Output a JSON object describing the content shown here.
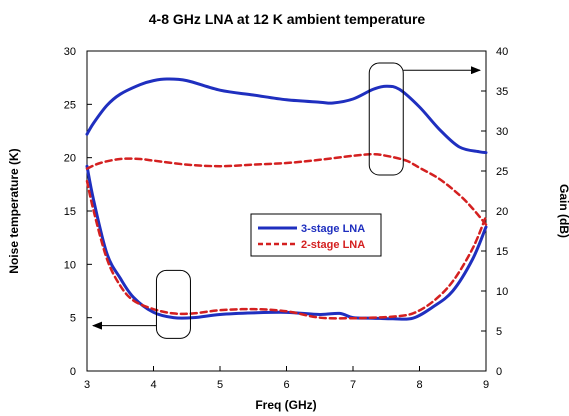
{
  "chart_data": {
    "type": "line",
    "title": "4-8 GHz LNA at 12 K ambient temperature",
    "xlabel": "Freq (GHz)",
    "ylabel_left": "Noise temperature (K)",
    "ylabel_right": "Gain (dB)",
    "xlim": [
      3,
      9
    ],
    "ylim_left": [
      0,
      30
    ],
    "ylim_right": [
      0,
      40
    ],
    "xticks": [
      "3",
      "4",
      "5",
      "6",
      "7",
      "8",
      "9"
    ],
    "yticks_left": [
      "0",
      "5",
      "10",
      "15",
      "20",
      "25",
      "30"
    ],
    "yticks_right": [
      "0",
      "5",
      "10",
      "15",
      "20",
      "25",
      "30",
      "35",
      "40"
    ],
    "grid": false,
    "legend_position": "center-right",
    "colors": {
      "three_stage": "#1f2fbf",
      "two_stage": "#d42020",
      "frame": "#000000"
    },
    "series": [
      {
        "name": "3-stage LNA",
        "axis": "left",
        "quantity": "noise",
        "style": "solid",
        "x": [
          3.0,
          3.1,
          3.3,
          3.5,
          3.7,
          4.0,
          4.3,
          4.6,
          5.0,
          5.5,
          6.0,
          6.5,
          6.8,
          7.0,
          7.3,
          7.6,
          7.9,
          8.2,
          8.5,
          8.8,
          9.0
        ],
        "y": [
          19.2,
          16.0,
          11.0,
          8.7,
          6.9,
          5.5,
          5.0,
          5.0,
          5.3,
          5.45,
          5.5,
          5.3,
          5.4,
          5.0,
          4.95,
          4.9,
          4.95,
          6.0,
          7.5,
          10.5,
          13.5
        ]
      },
      {
        "name": "2-stage LNA",
        "axis": "left",
        "quantity": "noise",
        "style": "dashed",
        "x": [
          3.0,
          3.1,
          3.3,
          3.5,
          3.7,
          4.0,
          4.3,
          4.6,
          5.0,
          5.5,
          6.0,
          6.5,
          7.0,
          7.3,
          7.6,
          7.9,
          8.2,
          8.5,
          8.8,
          9.0
        ],
        "y": [
          17.8,
          15.0,
          10.5,
          8.0,
          6.6,
          5.8,
          5.4,
          5.4,
          5.7,
          5.8,
          5.6,
          5.0,
          4.95,
          5.0,
          5.1,
          5.4,
          6.5,
          8.4,
          11.5,
          14.5
        ]
      },
      {
        "name": "3-stage LNA",
        "axis": "right",
        "quantity": "gain",
        "style": "solid",
        "x": [
          3.0,
          3.1,
          3.3,
          3.5,
          3.8,
          4.0,
          4.2,
          4.5,
          5.0,
          5.5,
          6.0,
          6.5,
          6.7,
          7.0,
          7.3,
          7.5,
          7.7,
          8.0,
          8.3,
          8.6,
          8.9,
          9.0
        ],
        "y": [
          29.6,
          31.0,
          33.2,
          34.6,
          35.8,
          36.3,
          36.5,
          36.3,
          35.1,
          34.5,
          33.9,
          33.6,
          33.5,
          34.0,
          35.2,
          35.6,
          35.2,
          33.0,
          30.2,
          28.0,
          27.4,
          27.3
        ]
      },
      {
        "name": "2-stage LNA",
        "axis": "right",
        "quantity": "gain",
        "style": "dashed",
        "x": [
          3.0,
          3.2,
          3.5,
          3.8,
          4.0,
          4.5,
          5.0,
          5.5,
          6.0,
          6.5,
          7.0,
          7.3,
          7.5,
          7.8,
          8.0,
          8.3,
          8.6,
          8.8,
          9.0
        ],
        "y": [
          25.3,
          26.0,
          26.5,
          26.5,
          26.3,
          25.8,
          25.6,
          25.8,
          26.0,
          26.4,
          26.9,
          27.1,
          26.9,
          26.3,
          25.4,
          24.0,
          22.0,
          20.3,
          18.3
        ]
      }
    ],
    "annotations": [
      {
        "kind": "ellipse",
        "target": "noise curves",
        "x_center": 4.3,
        "y_center_left": 6.25,
        "arrow_to": "left axis"
      },
      {
        "kind": "ellipse",
        "target": "gain curves",
        "x_center": 7.5,
        "y_center_right": 31.5,
        "arrow_to": "right axis"
      }
    ],
    "legend": [
      {
        "label": "3-stage LNA",
        "color_key": "three_stage",
        "style": "solid"
      },
      {
        "label": "2-stage LNA",
        "color_key": "two_stage",
        "style": "dashed"
      }
    ]
  }
}
